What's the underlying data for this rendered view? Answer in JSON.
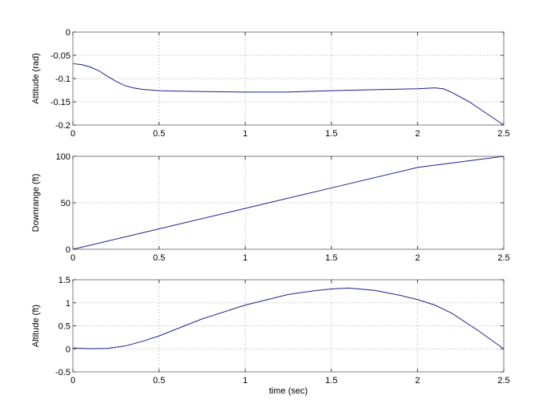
{
  "figure": {
    "xlabel": "time (sec)",
    "colors": {
      "line": "#1f1f8f",
      "axes": "#7f7f7f",
      "grid": "#cfcfcf",
      "background": "#ffffff"
    }
  },
  "chart_data": [
    {
      "type": "line",
      "title": "",
      "xlabel": "",
      "ylabel": "Attitude (rad)",
      "xlim": [
        0,
        2.5
      ],
      "ylim": [
        -0.2,
        0
      ],
      "xticks": [
        "0",
        "0.5",
        "1",
        "1.5",
        "2",
        "2.5"
      ],
      "yticks": [
        "0",
        "-0.05",
        "-0.1",
        "-0.15",
        "-0.2"
      ],
      "grid": true,
      "series": [
        {
          "name": "Attitude",
          "x": [
            0,
            0.05,
            0.1,
            0.15,
            0.2,
            0.25,
            0.3,
            0.35,
            0.4,
            0.5,
            0.6,
            0.75,
            1.0,
            1.25,
            1.5,
            1.75,
            2.0,
            2.1,
            2.15,
            2.2,
            2.3,
            2.4,
            2.5
          ],
          "y": [
            -0.068,
            -0.07,
            -0.075,
            -0.083,
            -0.095,
            -0.106,
            -0.115,
            -0.12,
            -0.123,
            -0.126,
            -0.127,
            -0.128,
            -0.129,
            -0.129,
            -0.126,
            -0.124,
            -0.122,
            -0.12,
            -0.122,
            -0.13,
            -0.15,
            -0.175,
            -0.2
          ]
        }
      ]
    },
    {
      "type": "line",
      "title": "",
      "xlabel": "",
      "ylabel": "Downrange (ft)",
      "xlim": [
        0,
        2.5
      ],
      "ylim": [
        0,
        100
      ],
      "xticks": [
        "0",
        "0.5",
        "1",
        "1.5",
        "2",
        "2.5"
      ],
      "yticks": [
        "100",
        "50",
        "0"
      ],
      "grid": true,
      "series": [
        {
          "name": "Downrange",
          "x": [
            0,
            0.5,
            1.0,
            1.5,
            2.0,
            2.5
          ],
          "y": [
            0,
            22,
            44,
            66,
            88,
            100
          ]
        }
      ]
    },
    {
      "type": "line",
      "title": "",
      "xlabel": "time (sec)",
      "ylabel": "Altitude (ft)",
      "xlim": [
        0,
        2.5
      ],
      "ylim": [
        -0.5,
        1.5
      ],
      "xticks": [
        "0",
        "0.5",
        "1",
        "1.5",
        "2",
        "2.5"
      ],
      "yticks": [
        "1.5",
        "1",
        "0.5",
        "0",
        "-0.5"
      ],
      "grid": true,
      "series": [
        {
          "name": "Altitude",
          "x": [
            0,
            0.1,
            0.2,
            0.3,
            0.4,
            0.5,
            0.75,
            1.0,
            1.25,
            1.4,
            1.5,
            1.6,
            1.75,
            1.9,
            2.0,
            2.1,
            2.2,
            2.35,
            2.5
          ],
          "y": [
            0.02,
            0.005,
            0.01,
            0.06,
            0.16,
            0.28,
            0.65,
            0.95,
            1.18,
            1.26,
            1.3,
            1.32,
            1.27,
            1.16,
            1.07,
            0.95,
            0.77,
            0.4,
            0.0
          ]
        }
      ]
    }
  ]
}
